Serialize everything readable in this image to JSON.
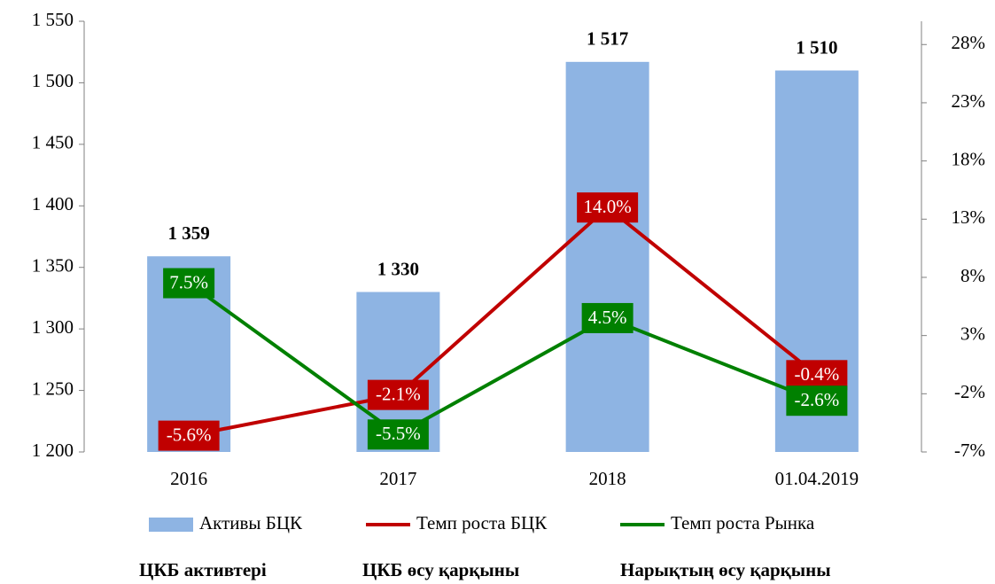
{
  "chart_data": {
    "type": "bar_line",
    "categories": [
      "2016",
      "2017",
      "2018",
      "01.04.2019"
    ],
    "series": [
      {
        "name": "Активы БЦК",
        "type": "bar",
        "color": "#8eb4e3",
        "values": [
          1359,
          1330,
          1517,
          1510
        ],
        "value_labels": [
          "1 359",
          "1 330",
          "1 517",
          "1 510"
        ]
      },
      {
        "name": "Темп роста БЦК",
        "type": "line",
        "axis": "y2",
        "color": "#c00000",
        "values": [
          -5.6,
          -2.1,
          14.0,
          -0.4
        ],
        "value_labels": [
          "-5.6%",
          "-2.1%",
          "14.0%",
          "-0.4%"
        ]
      },
      {
        "name": "Темп роста Рынка",
        "type": "line",
        "axis": "y2",
        "color": "#008000",
        "values": [
          7.5,
          -5.5,
          4.5,
          -2.6
        ],
        "value_labels": [
          "7.5%",
          "-5.5%",
          "4.5%",
          "-2.6%"
        ]
      }
    ],
    "ylim": [
      1200,
      1550
    ],
    "yticks": [
      {
        "value": 1200,
        "label": "1 200"
      },
      {
        "value": 1250,
        "label": "1 250"
      },
      {
        "value": 1300,
        "label": "1 300"
      },
      {
        "value": 1350,
        "label": "1 350"
      },
      {
        "value": 1400,
        "label": "1 400"
      },
      {
        "value": 1450,
        "label": "1 450"
      },
      {
        "value": 1500,
        "label": "1 500"
      },
      {
        "value": 1550,
        "label": "1 550"
      }
    ],
    "y2lim": [
      -7,
      30
    ],
    "y2ticks": [
      {
        "value": -7,
        "label": "-7%"
      },
      {
        "value": -2,
        "label": "-2%"
      },
      {
        "value": 3,
        "label": "3%"
      },
      {
        "value": 8,
        "label": "8%"
      },
      {
        "value": 13,
        "label": "13%"
      },
      {
        "value": 18,
        "label": "18%"
      },
      {
        "value": 23,
        "label": "23%"
      },
      {
        "value": 28,
        "label": "28%"
      }
    ],
    "legend": "bottom",
    "captions": [
      "ЦКБ активтері",
      "ЦКБ өсу қарқыны",
      "Нарықтың өсу қарқыны"
    ]
  }
}
